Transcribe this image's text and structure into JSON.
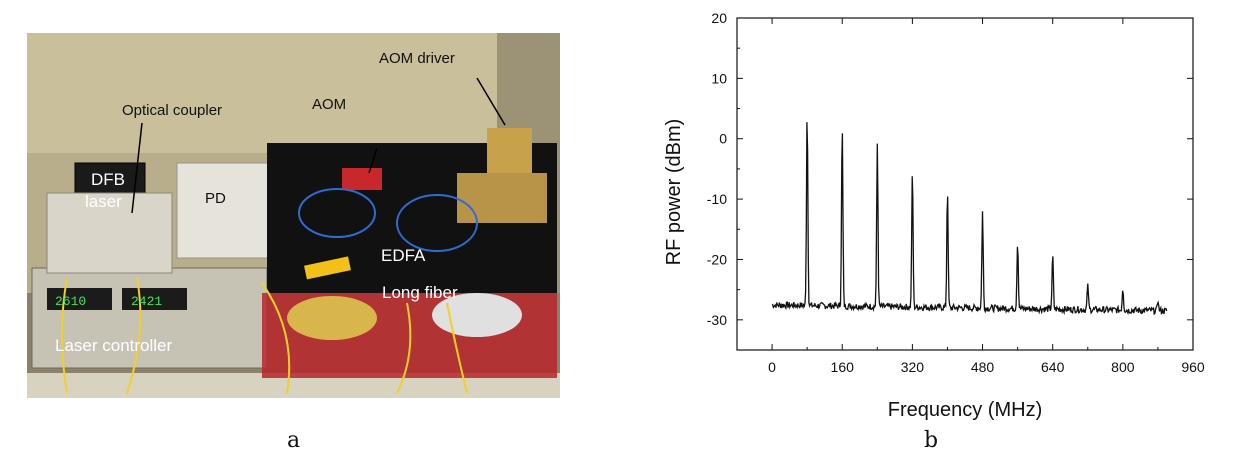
{
  "panel_a": {
    "caption": "a",
    "labels": {
      "aom_driver": "AOM driver",
      "optical_coupler": "Optical coupler",
      "aom": "AOM",
      "dfb_laser_line1": "DFB",
      "dfb_laser_line2": "laser",
      "pd": "PD",
      "edfa": "EDFA",
      "long_fiber": "Long fiber",
      "laser_controller": "Laser controller"
    },
    "displays": {
      "left": "2610",
      "right": "2421"
    }
  },
  "panel_b": {
    "caption": "b"
  },
  "chart_data": {
    "type": "line",
    "title": "",
    "xlabel": "Frequency (MHz)",
    "ylabel": "RF power (dBm)",
    "xlim": [
      -80,
      960
    ],
    "ylim": [
      -35,
      20
    ],
    "xticks": [
      0,
      160,
      320,
      480,
      640,
      800,
      960
    ],
    "yticks": [
      20,
      10,
      0,
      -10,
      -20,
      -30
    ],
    "grid": false,
    "noise_floor": -28.5,
    "x_range": [
      0,
      900
    ],
    "peaks": [
      {
        "x": 80,
        "y": 4.5
      },
      {
        "x": 160,
        "y": 2.5
      },
      {
        "x": 240,
        "y": -0.8
      },
      {
        "x": 320,
        "y": -5.0
      },
      {
        "x": 400,
        "y": -8.5
      },
      {
        "x": 480,
        "y": -12.0
      },
      {
        "x": 560,
        "y": -17.3
      },
      {
        "x": 640,
        "y": -19.0
      },
      {
        "x": 720,
        "y": -24.0
      },
      {
        "x": 800,
        "y": -25.0
      },
      {
        "x": 880,
        "y": -27.0
      }
    ]
  }
}
